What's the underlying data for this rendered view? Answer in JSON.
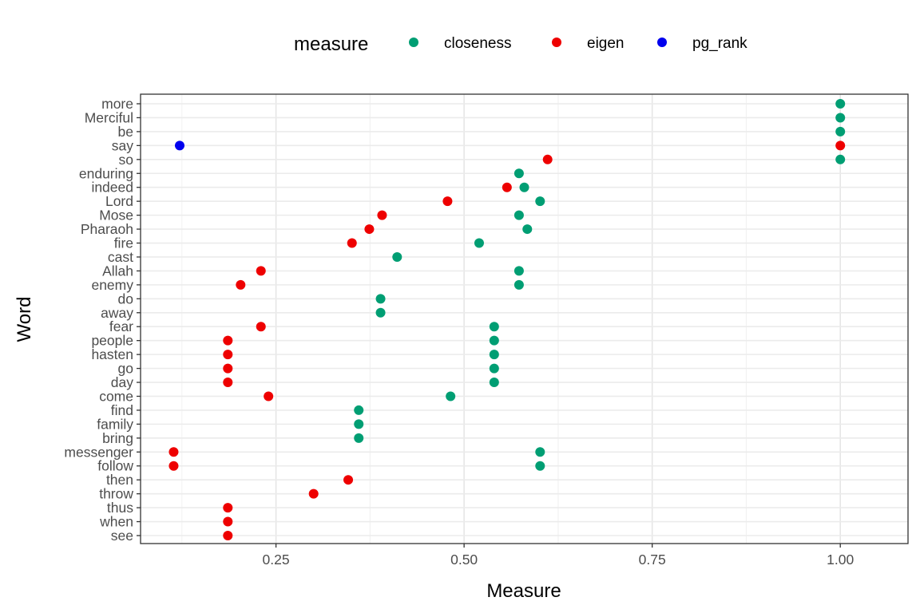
{
  "chart_data": {
    "type": "scatter",
    "xlabel": "Measure",
    "ylabel": "Word",
    "xlim": [
      0.07,
      1.09
    ],
    "x_ticks": [
      0.25,
      0.5,
      0.75,
      1.0
    ],
    "x_tick_labels": [
      "0.25",
      "0.50",
      "0.75",
      "1.00"
    ],
    "grid": true,
    "legend": {
      "title": "measure",
      "position": "top",
      "entries": [
        {
          "key": "closeness",
          "label": "closeness",
          "color": "#009E73"
        },
        {
          "key": "eigen",
          "label": "eigen",
          "color": "#EE0000"
        },
        {
          "key": "pg_rank",
          "label": "pg_rank",
          "color": "#0000EE"
        }
      ]
    },
    "categories": [
      "more",
      "Merciful",
      "be",
      "say",
      "so",
      "enduring",
      "indeed",
      "Lord",
      "Mose",
      "Pharaoh",
      "fire",
      "cast",
      "Allah",
      "enemy",
      "do",
      "away",
      "fear",
      "people",
      "hasten",
      "go",
      "day",
      "come",
      "find",
      "family",
      "bring",
      "messenger",
      "follow",
      "then",
      "throw",
      "thus",
      "when",
      "see"
    ],
    "series": [
      {
        "name": "closeness",
        "color": "#009E73",
        "points": [
          {
            "word": "more",
            "x": 1.0
          },
          {
            "word": "Merciful",
            "x": 1.0
          },
          {
            "word": "be",
            "x": 1.0
          },
          {
            "word": "so",
            "x": 1.0
          },
          {
            "word": "enduring",
            "x": 0.573
          },
          {
            "word": "indeed",
            "x": 0.58
          },
          {
            "word": "Lord",
            "x": 0.601
          },
          {
            "word": "Mose",
            "x": 0.573
          },
          {
            "word": "Pharaoh",
            "x": 0.584
          },
          {
            "word": "fire",
            "x": 0.52
          },
          {
            "word": "cast",
            "x": 0.411
          },
          {
            "word": "Allah",
            "x": 0.573
          },
          {
            "word": "enemy",
            "x": 0.573
          },
          {
            "word": "do",
            "x": 0.389
          },
          {
            "word": "away",
            "x": 0.389
          },
          {
            "word": "fear",
            "x": 0.54
          },
          {
            "word": "people",
            "x": 0.54
          },
          {
            "word": "hasten",
            "x": 0.54
          },
          {
            "word": "go",
            "x": 0.54
          },
          {
            "word": "day",
            "x": 0.54
          },
          {
            "word": "come",
            "x": 0.482
          },
          {
            "word": "find",
            "x": 0.36
          },
          {
            "word": "family",
            "x": 0.36
          },
          {
            "word": "bring",
            "x": 0.36
          },
          {
            "word": "messenger",
            "x": 0.601
          },
          {
            "word": "follow",
            "x": 0.601
          }
        ]
      },
      {
        "name": "eigen",
        "color": "#EE0000",
        "points": [
          {
            "word": "say",
            "x": 1.0
          },
          {
            "word": "so",
            "x": 0.611
          },
          {
            "word": "indeed",
            "x": 0.557
          },
          {
            "word": "Lord",
            "x": 0.478
          },
          {
            "word": "Mose",
            "x": 0.391
          },
          {
            "word": "Pharaoh",
            "x": 0.374
          },
          {
            "word": "fire",
            "x": 0.351
          },
          {
            "word": "Allah",
            "x": 0.23
          },
          {
            "word": "enemy",
            "x": 0.203
          },
          {
            "word": "fear",
            "x": 0.23
          },
          {
            "word": "people",
            "x": 0.186
          },
          {
            "word": "hasten",
            "x": 0.186
          },
          {
            "word": "go",
            "x": 0.186
          },
          {
            "word": "day",
            "x": 0.186
          },
          {
            "word": "come",
            "x": 0.24
          },
          {
            "word": "messenger",
            "x": 0.114
          },
          {
            "word": "follow",
            "x": 0.114
          },
          {
            "word": "then",
            "x": 0.346
          },
          {
            "word": "throw",
            "x": 0.3
          },
          {
            "word": "thus",
            "x": 0.186
          },
          {
            "word": "when",
            "x": 0.186
          },
          {
            "word": "see",
            "x": 0.186
          }
        ]
      },
      {
        "name": "pg_rank",
        "color": "#0000EE",
        "points": [
          {
            "word": "say",
            "x": 0.122
          }
        ]
      }
    ]
  }
}
